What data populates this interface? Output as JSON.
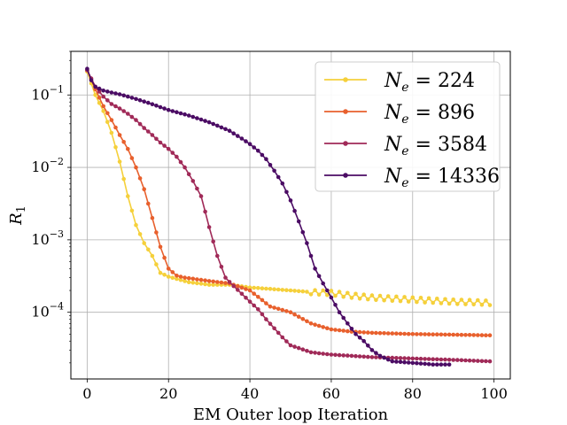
{
  "chart_data": {
    "type": "line",
    "title": "",
    "xlabel": "EM Outer loop Iteration",
    "ylabel": "R_1",
    "ylabel_main": "R",
    "ylabel_sub": "1",
    "yscale": "log",
    "xlim": [
      -4,
      104
    ],
    "ylim": [
      1.2e-05,
      0.4
    ],
    "xticks": [
      0,
      20,
      40,
      60,
      80,
      100
    ],
    "xtick_labels": [
      "0",
      "20",
      "40",
      "60",
      "80",
      "100"
    ],
    "yticks": [
      0.0001,
      0.001,
      0.01,
      0.1
    ],
    "ytick_labels": [
      {
        "base": "10",
        "exp": "−4"
      },
      {
        "base": "10",
        "exp": "−3"
      },
      {
        "base": "10",
        "exp": "−2"
      },
      {
        "base": "10",
        "exp": "−1"
      }
    ],
    "grid": true,
    "legend_position": "top-right",
    "series": [
      {
        "name": "N_e = 224",
        "legend_label": "N",
        "legend_sub": "e",
        "legend_value": " = 224",
        "color": "#f5d03b",
        "x": [
          0,
          2,
          4,
          6,
          8,
          10,
          12,
          14,
          16,
          18,
          20,
          25,
          30,
          35,
          40,
          45,
          50,
          55,
          60,
          65,
          70,
          75,
          80,
          85,
          90,
          95,
          99
        ],
        "y": [
          0.21,
          0.1,
          0.06,
          0.03,
          0.012,
          0.004,
          0.0016,
          0.0009,
          0.0006,
          0.00035,
          0.00031,
          0.00026,
          0.00024,
          0.00024,
          0.00022,
          0.00021,
          0.0002,
          0.00019,
          0.000185,
          0.00017,
          0.00016,
          0.000155,
          0.00015,
          0.000145,
          0.00014,
          0.000138,
          0.000135
        ],
        "oscillate_from_x": 55,
        "oscillate_amp": 0.07
      },
      {
        "name": "N_e = 896",
        "legend_label": "N",
        "legend_sub": "e",
        "legend_value": " = 896",
        "color": "#e8602d",
        "x": [
          0,
          2,
          4,
          6,
          8,
          10,
          12,
          14,
          16,
          18,
          20,
          22,
          24,
          26,
          28,
          30,
          35,
          40,
          45,
          50,
          55,
          60,
          65,
          70,
          80,
          90,
          99
        ],
        "y": [
          0.22,
          0.12,
          0.07,
          0.045,
          0.028,
          0.018,
          0.01,
          0.005,
          0.002,
          0.0008,
          0.0004,
          0.00032,
          0.0003,
          0.00029,
          0.00028,
          0.00027,
          0.00025,
          0.0002,
          0.00012,
          0.0001,
          7e-05,
          5.8e-05,
          5.4e-05,
          5.2e-05,
          5e-05,
          4.9e-05,
          4.8e-05
        ],
        "oscillate_from_x": 999,
        "oscillate_amp": 0
      },
      {
        "name": "N_e = 3584",
        "legend_label": "N",
        "legend_sub": "e",
        "legend_value": " = 3584",
        "color": "#a02a58",
        "x": [
          0,
          2,
          4,
          6,
          8,
          10,
          12,
          14,
          16,
          18,
          20,
          22,
          24,
          26,
          28,
          30,
          32,
          34,
          36,
          38,
          40,
          42,
          44,
          46,
          48,
          50,
          55,
          60,
          65,
          70,
          80,
          90,
          99
        ],
        "y": [
          0.22,
          0.13,
          0.095,
          0.075,
          0.065,
          0.055,
          0.045,
          0.035,
          0.028,
          0.022,
          0.018,
          0.014,
          0.01,
          0.0065,
          0.004,
          0.0015,
          0.0006,
          0.0003,
          0.00023,
          0.00018,
          0.00014,
          0.00011,
          8e-05,
          6e-05,
          4.5e-05,
          3.5e-05,
          2.8e-05,
          2.6e-05,
          2.5e-05,
          2.4e-05,
          2.3e-05,
          2.2e-05,
          2.1e-05
        ],
        "oscillate_from_x": 999,
        "oscillate_amp": 0
      },
      {
        "name": "N_e = 14336",
        "legend_label": "N",
        "legend_sub": "e",
        "legend_value": " = 14336",
        "color": "#4b0c64",
        "x": [
          0,
          1,
          2,
          4,
          6,
          8,
          10,
          12,
          15,
          18,
          20,
          25,
          30,
          35,
          38,
          40,
          42,
          44,
          46,
          48,
          50,
          52,
          54,
          56,
          58,
          60,
          62,
          64,
          66,
          68,
          70,
          72,
          75,
          80,
          85,
          89
        ],
        "y": [
          0.23,
          0.16,
          0.13,
          0.115,
          0.108,
          0.102,
          0.095,
          0.088,
          0.078,
          0.068,
          0.062,
          0.052,
          0.042,
          0.032,
          0.025,
          0.021,
          0.017,
          0.013,
          0.009,
          0.006,
          0.0035,
          0.0018,
          0.0009,
          0.0004,
          0.00025,
          0.00016,
          0.0001,
          7e-05,
          5e-05,
          4e-05,
          3e-05,
          2.5e-05,
          2.1e-05,
          2e-05,
          1.9e-05,
          1.9e-05
        ],
        "oscillate_from_x": 999,
        "oscillate_amp": 0
      }
    ]
  }
}
